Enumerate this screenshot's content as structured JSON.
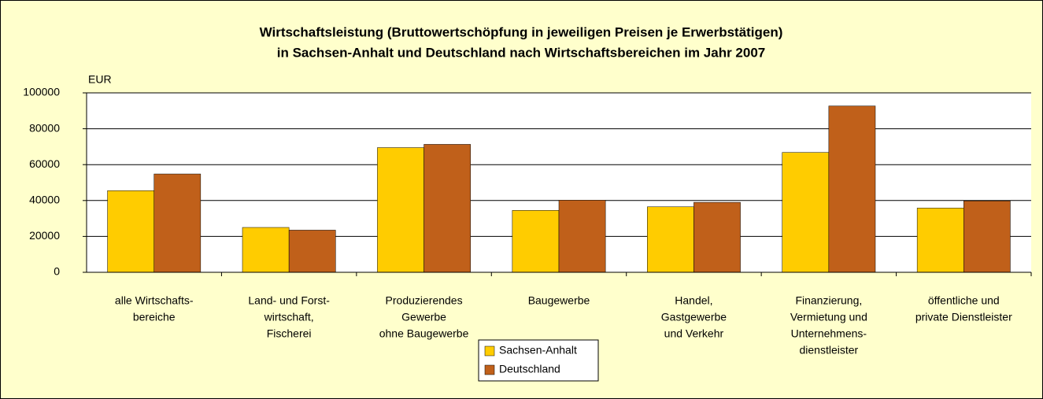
{
  "chart_data": {
    "type": "bar",
    "title": [
      "Wirtschaftsleistung (Bruttowertschöpfung in jeweiligen Preisen je Erwerbstätigen)",
      "in Sachsen-Anhalt und Deutschland nach Wirtschaftsbereichen im Jahr 2007"
    ],
    "y_label": "EUR",
    "categories": [
      [
        "alle Wirtschafts-",
        "bereiche"
      ],
      [
        "Land- und Forst-",
        "wirtschaft,",
        "Fischerei"
      ],
      [
        "Produzierendes",
        "Gewerbe",
        "ohne Baugewerbe"
      ],
      [
        "Baugewerbe"
      ],
      [
        "Handel,",
        "Gastgewerbe",
        "und Verkehr"
      ],
      [
        "Finanzierung,",
        "Vermietung und",
        "Unternehmens-",
        "dienstleister"
      ],
      [
        "öffentliche und",
        "private Dienstleister"
      ]
    ],
    "series": [
      {
        "name": "Sachsen-Anhalt",
        "color": "#ffcc00",
        "values": [
          45500,
          25000,
          69500,
          34500,
          36500,
          66800,
          35800
        ]
      },
      {
        "name": "Deutschland",
        "color": "#c0601a",
        "values": [
          54800,
          23500,
          71300,
          40200,
          39000,
          92700,
          39800
        ]
      }
    ],
    "ylim": [
      0,
      100000
    ],
    "yticks": [
      0,
      20000,
      40000,
      60000,
      80000,
      100000
    ],
    "grid": true
  }
}
